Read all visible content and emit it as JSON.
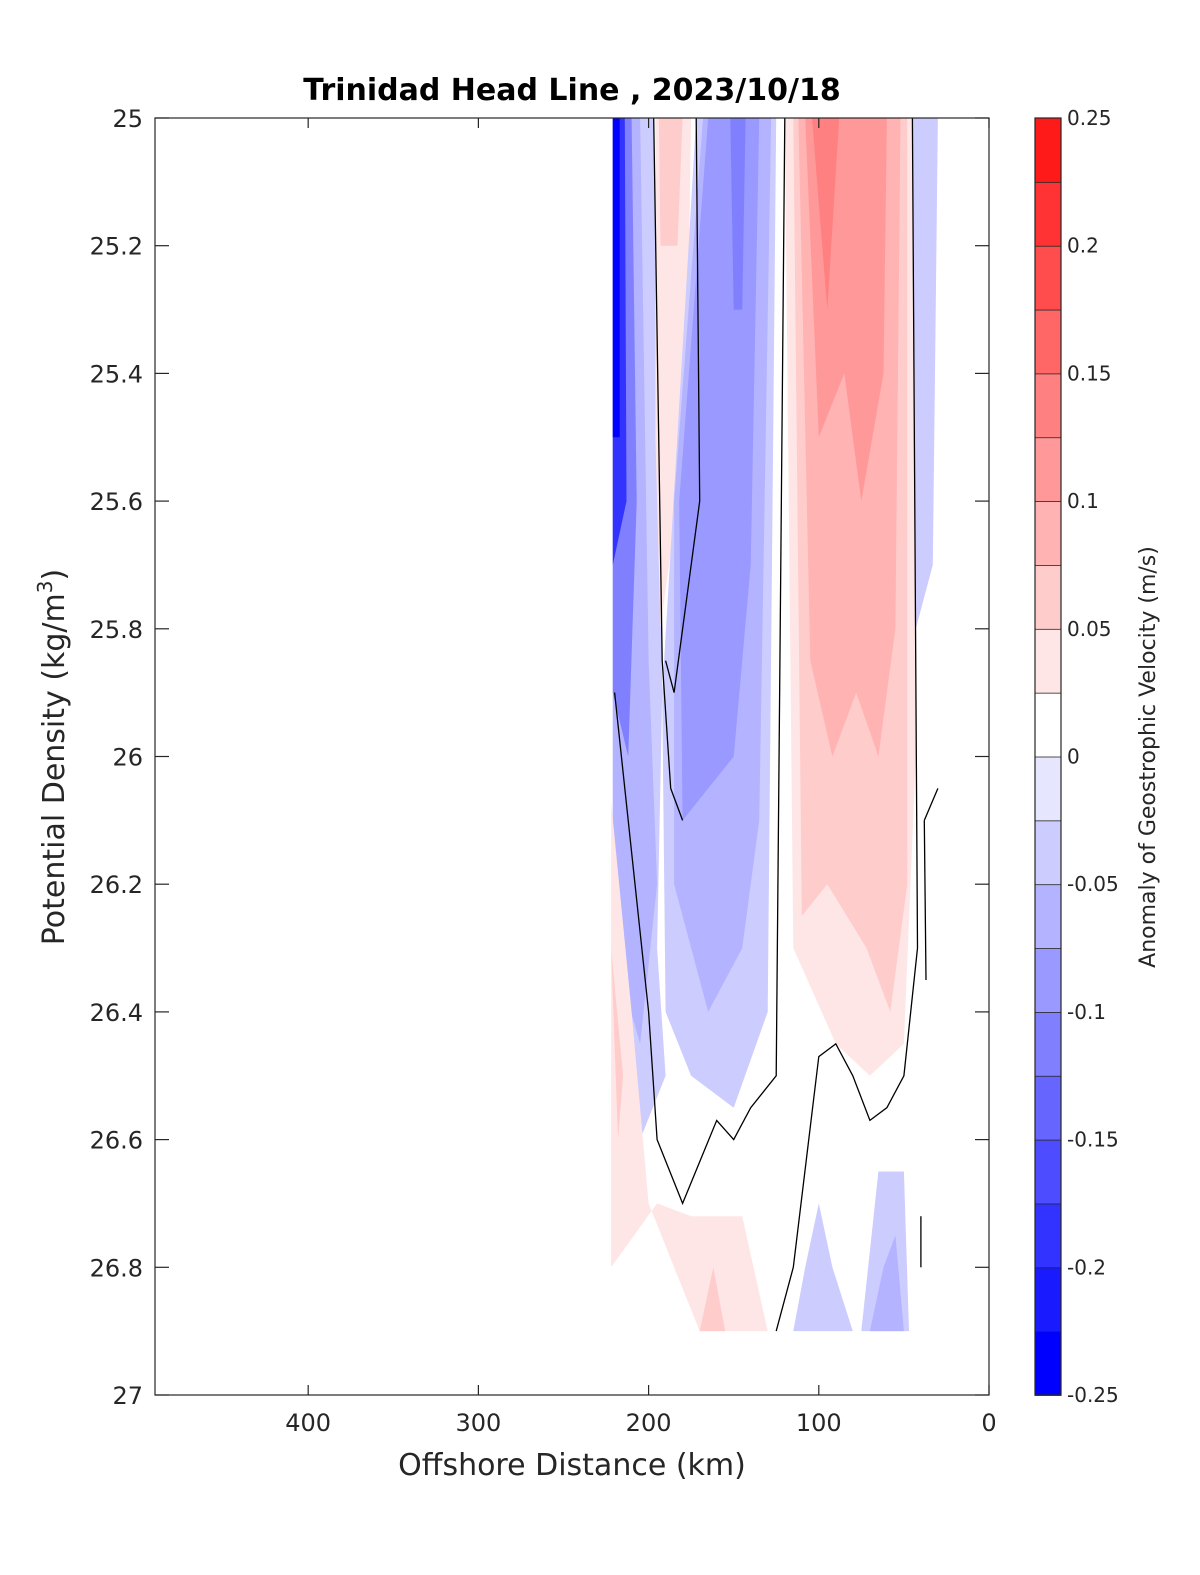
{
  "chart_data": {
    "type": "contour",
    "title": "Trinidad Head Line , 2023/10/18",
    "xlabel": "Offshore Distance (km)",
    "ylabel_main": "Potential Density (kg/m",
    "ylabel_sup": "3",
    "ylabel_close": ")",
    "colorbar_label": "Anomaly of Geostrophic Velocity (m/s)",
    "xlim": [
      490,
      0
    ],
    "x_reversed": true,
    "ylim": [
      25,
      27
    ],
    "y_reversed": true,
    "xticks": [
      400,
      300,
      200,
      100,
      0
    ],
    "xtick_labels": [
      "400",
      "300",
      "200",
      "100",
      "0"
    ],
    "yticks": [
      25,
      25.2,
      25.4,
      25.6,
      25.8,
      26,
      26.2,
      26.4,
      26.6,
      26.8,
      27
    ],
    "ytick_labels": [
      "25",
      "25.2",
      "25.4",
      "25.6",
      "25.8",
      "26",
      "26.2",
      "26.4",
      "26.6",
      "26.8",
      "27"
    ],
    "colorbar": {
      "min": -0.25,
      "max": 0.25,
      "levels": [
        -0.25,
        -0.225,
        -0.2,
        -0.175,
        -0.15,
        -0.125,
        -0.1,
        -0.075,
        -0.05,
        -0.025,
        0,
        0.025,
        0.05,
        0.075,
        0.1,
        0.125,
        0.15,
        0.175,
        0.2,
        0.225,
        0.25
      ],
      "colors": [
        "#0000ff",
        "#1a1aff",
        "#3333ff",
        "#4d4dff",
        "#6666ff",
        "#8080ff",
        "#9999ff",
        "#b3b3ff",
        "#ccccff",
        "#e6e6ff",
        "#ffffff",
        "#ffffff",
        "#ffe6e6",
        "#ffcccc",
        "#ffb3b3",
        "#ff9999",
        "#ff8080",
        "#ff6666",
        "#ff4d4d",
        "#ff3333",
        "#ff1a1a",
        "#ff0000"
      ],
      "bands": [
        {
          "lo": -0.25,
          "hi": -0.225,
          "color": "#0000ff"
        },
        {
          "lo": -0.225,
          "hi": -0.2,
          "color": "#1a1aff"
        },
        {
          "lo": -0.2,
          "hi": -0.175,
          "color": "#3333ff"
        },
        {
          "lo": -0.175,
          "hi": -0.15,
          "color": "#4d4dff"
        },
        {
          "lo": -0.15,
          "hi": -0.125,
          "color": "#6666ff"
        },
        {
          "lo": -0.125,
          "hi": -0.1,
          "color": "#8080ff"
        },
        {
          "lo": -0.1,
          "hi": -0.075,
          "color": "#9999ff"
        },
        {
          "lo": -0.075,
          "hi": -0.05,
          "color": "#b3b3ff"
        },
        {
          "lo": -0.05,
          "hi": -0.025,
          "color": "#ccccff"
        },
        {
          "lo": -0.025,
          "hi": 0,
          "color": "#e6e6ff"
        },
        {
          "lo": 0,
          "hi": 0.025,
          "color": "#ffffff"
        },
        {
          "lo": 0.025,
          "hi": 0.05,
          "color": "#ffe6e6"
        },
        {
          "lo": 0.05,
          "hi": 0.075,
          "color": "#ffcccc"
        },
        {
          "lo": 0.075,
          "hi": 0.1,
          "color": "#ffb3b3"
        },
        {
          "lo": 0.1,
          "hi": 0.125,
          "color": "#ff9999"
        },
        {
          "lo": 0.125,
          "hi": 0.15,
          "color": "#ff8080"
        },
        {
          "lo": 0.15,
          "hi": 0.175,
          "color": "#ff6666"
        },
        {
          "lo": 0.175,
          "hi": 0.2,
          "color": "#ff4d4d"
        },
        {
          "lo": 0.2,
          "hi": 0.225,
          "color": "#ff3333"
        },
        {
          "lo": 0.225,
          "hi": 0.25,
          "color": "#ff1a1a"
        }
      ],
      "ticks": [
        0.25,
        0.2,
        0.15,
        0.1,
        0.05,
        0,
        -0.05,
        -0.1,
        -0.15,
        -0.2,
        -0.25
      ],
      "tick_labels": [
        "0.25",
        "0.2",
        "0.15",
        "0.1",
        "0.05",
        "0",
        "-0.05",
        "-0.1",
        "-0.15",
        "-0.2",
        "-0.25"
      ]
    },
    "regions": [
      {
        "value": -0.03,
        "points": [
          [
            221,
            25
          ],
          [
            197,
            25
          ],
          [
            192,
            25.9
          ],
          [
            195,
            26.3
          ],
          [
            190,
            26.5
          ],
          [
            205,
            26.6
          ],
          [
            221,
            26.55
          ]
        ]
      },
      {
        "value": -0.07,
        "points": [
          [
            221,
            25
          ],
          [
            205,
            25
          ],
          [
            200,
            25.85
          ],
          [
            195,
            26.2
          ],
          [
            205,
            26.45
          ],
          [
            221,
            26.3
          ]
        ]
      },
      {
        "value": -0.12,
        "points": [
          [
            221,
            25
          ],
          [
            210,
            25
          ],
          [
            207,
            25.6
          ],
          [
            212,
            26.0
          ],
          [
            221,
            25.9
          ]
        ]
      },
      {
        "value": -0.18,
        "points": [
          [
            221,
            25
          ],
          [
            214,
            25
          ],
          [
            213,
            25.6
          ],
          [
            221,
            25.7
          ]
        ]
      },
      {
        "value": -0.23,
        "points": [
          [
            221,
            25
          ],
          [
            217,
            25
          ],
          [
            217,
            25.5
          ],
          [
            221,
            25.5
          ]
        ]
      },
      {
        "value": 0.03,
        "points": [
          [
            196,
            25
          ],
          [
            175,
            25
          ],
          [
            178,
            25.5
          ],
          [
            193,
            25.8
          ],
          [
            196,
            25.5
          ]
        ]
      },
      {
        "value": 0.055,
        "points": [
          [
            194,
            25
          ],
          [
            180,
            25
          ],
          [
            183,
            25.2
          ],
          [
            193,
            25.2
          ]
        ]
      },
      {
        "value": -0.03,
        "points": [
          [
            172,
            25
          ],
          [
            125,
            25
          ],
          [
            130,
            26.4
          ],
          [
            150,
            26.55
          ],
          [
            175,
            26.5
          ],
          [
            190,
            26.4
          ],
          [
            192,
            25.9
          ]
        ]
      },
      {
        "value": -0.06,
        "points": [
          [
            168,
            25
          ],
          [
            128,
            25
          ],
          [
            135,
            26.1
          ],
          [
            145,
            26.3
          ],
          [
            165,
            26.4
          ],
          [
            185,
            26.2
          ],
          [
            185,
            25.6
          ]
        ]
      },
      {
        "value": -0.085,
        "points": [
          [
            165,
            25
          ],
          [
            135,
            25
          ],
          [
            140,
            25.7
          ],
          [
            150,
            26.0
          ],
          [
            180,
            26.1
          ],
          [
            182,
            25.6
          ]
        ]
      },
      {
        "value": -0.11,
        "points": [
          [
            152,
            25
          ],
          [
            143,
            25
          ],
          [
            145,
            25.3
          ],
          [
            150,
            25.3
          ]
        ]
      },
      {
        "value": 0.03,
        "points": [
          [
            120,
            25
          ],
          [
            45,
            25
          ],
          [
            43,
            26.0
          ],
          [
            50,
            26.45
          ],
          [
            70,
            26.5
          ],
          [
            90,
            26.45
          ],
          [
            115,
            26.3
          ]
        ]
      },
      {
        "value": 0.06,
        "points": [
          [
            115,
            25
          ],
          [
            48,
            25
          ],
          [
            48,
            26.2
          ],
          [
            58,
            26.4
          ],
          [
            72,
            26.3
          ],
          [
            95,
            26.2
          ],
          [
            110,
            26.25
          ]
        ]
      },
      {
        "value": 0.085,
        "points": [
          [
            112,
            25
          ],
          [
            52,
            25
          ],
          [
            55,
            25.8
          ],
          [
            65,
            26.0
          ],
          [
            78,
            25.9
          ],
          [
            92,
            26.0
          ],
          [
            105,
            25.85
          ]
        ]
      },
      {
        "value": 0.11,
        "points": [
          [
            108,
            25
          ],
          [
            60,
            25
          ],
          [
            62,
            25.4
          ],
          [
            75,
            25.6
          ],
          [
            85,
            25.4
          ],
          [
            100,
            25.5
          ]
        ]
      },
      {
        "value": 0.13,
        "points": [
          [
            104,
            25
          ],
          [
            88,
            25
          ],
          [
            95,
            25.3
          ]
        ]
      },
      {
        "value": -0.03,
        "points": [
          [
            45,
            25
          ],
          [
            30,
            25
          ],
          [
            33,
            25.7
          ],
          [
            43,
            25.8
          ]
        ]
      },
      {
        "value": 0.03,
        "points": [
          [
            222,
            26.07
          ],
          [
            210,
            26.4
          ],
          [
            200,
            26.7
          ],
          [
            185,
            26.8
          ],
          [
            170,
            26.9
          ],
          [
            130,
            26.9
          ],
          [
            145,
            26.72
          ],
          [
            175,
            26.72
          ],
          [
            195,
            26.7
          ],
          [
            222,
            26.8
          ]
        ]
      },
      {
        "value": 0.06,
        "points": [
          [
            222,
            26.3
          ],
          [
            218,
            26.6
          ],
          [
            215,
            26.5
          ]
        ]
      },
      {
        "value": 0.06,
        "points": [
          [
            170,
            26.9
          ],
          [
            155,
            26.9
          ],
          [
            162,
            26.8
          ]
        ]
      },
      {
        "value": -0.03,
        "points": [
          [
            115,
            26.9
          ],
          [
            80,
            26.9
          ],
          [
            92,
            26.8
          ],
          [
            100,
            26.7
          ],
          [
            108,
            26.8
          ]
        ]
      },
      {
        "value": -0.03,
        "points": [
          [
            75,
            26.9
          ],
          [
            47,
            26.9
          ],
          [
            50,
            26.65
          ],
          [
            65,
            26.65
          ]
        ]
      },
      {
        "value": -0.06,
        "points": [
          [
            70,
            26.9
          ],
          [
            50,
            26.9
          ],
          [
            55,
            26.75
          ],
          [
            62,
            26.8
          ]
        ]
      }
    ],
    "zero_contours": [
      [
        [
          197,
          25
        ],
        [
          192,
          25.85
        ],
        [
          187,
          26.05
        ],
        [
          180,
          26.1
        ]
      ],
      [
        [
          172,
          25
        ],
        [
          170,
          25.6
        ],
        [
          185,
          25.9
        ],
        [
          190,
          25.85
        ]
      ],
      [
        [
          120,
          25
        ],
        [
          125,
          26.5
        ],
        [
          140,
          26.55
        ],
        [
          150,
          26.6
        ],
        [
          160,
          26.57
        ],
        [
          180,
          26.7
        ],
        [
          195,
          26.6
        ],
        [
          200,
          26.4
        ],
        [
          210,
          26.15
        ],
        [
          220,
          25.9
        ]
      ],
      [
        [
          45,
          25
        ],
        [
          42,
          26.3
        ],
        [
          50,
          26.5
        ],
        [
          60,
          26.55
        ],
        [
          70,
          26.57
        ],
        [
          80,
          26.5
        ],
        [
          90,
          26.45
        ],
        [
          100,
          26.47
        ],
        [
          115,
          26.8
        ],
        [
          125,
          26.9
        ]
      ],
      [
        [
          38,
          26.1
        ],
        [
          30,
          26.05
        ]
      ],
      [
        [
          37,
          26.35
        ],
        [
          38,
          26.1
        ]
      ],
      [
        [
          40,
          26.72
        ],
        [
          40,
          26.8
        ]
      ]
    ]
  }
}
